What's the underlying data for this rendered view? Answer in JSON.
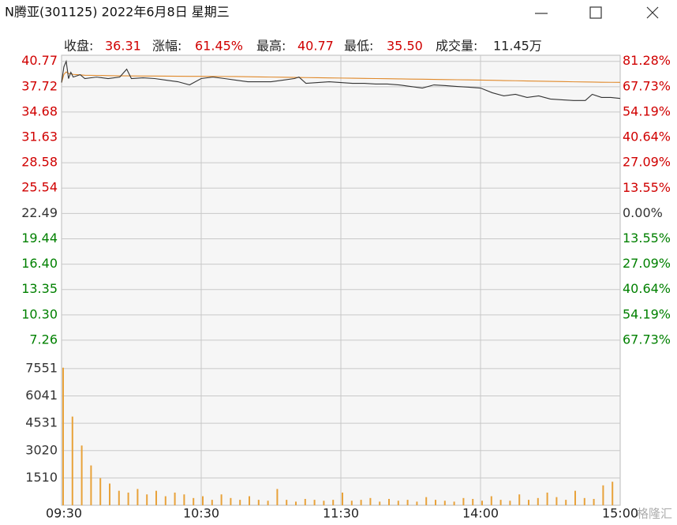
{
  "window": {
    "title": "N腾亚(301125)  2022年6月8日  星期三"
  },
  "stats": [
    {
      "label": "收盘:",
      "value": "36.31",
      "color": "#d00000"
    },
    {
      "label": "涨幅:",
      "value": "61.45%",
      "color": "#d00000"
    },
    {
      "label": "最高:",
      "value": "40.77",
      "color": "#d00000"
    },
    {
      "label": "最低:",
      "value": "35.50",
      "color": "#d00000"
    },
    {
      "label": "成交量:",
      "value": "11.45万",
      "color": "#222222"
    }
  ],
  "watermark": "格隆汇",
  "chart_data": [
    {
      "type": "line",
      "colors": {
        "up": "#d00000",
        "down": "#008000",
        "flat": "#333333"
      },
      "grid": true,
      "xlim": [
        0,
        240
      ],
      "xticks": [
        {
          "value": 0,
          "label": "09:30"
        },
        {
          "value": 60,
          "label": "10:30"
        },
        {
          "value": 120,
          "label": "11:30"
        },
        {
          "value": 180,
          "label": "14:00"
        },
        {
          "value": 240,
          "label": "15:00"
        }
      ],
      "ylim": [
        4.5,
        41.5
      ],
      "yticks": [
        40.77,
        37.72,
        34.68,
        31.63,
        28.58,
        25.54,
        22.49,
        19.44,
        {
          "value": 16.4,
          "label": "16.40"
        },
        13.35,
        {
          "value": 10.3,
          "label": "10.30"
        },
        7.26
      ],
      "y2lim": [
        -79.99,
        84.53
      ],
      "y2ticks": [
        {
          "value": 81.28,
          "label": "81.28%"
        },
        {
          "value": 67.73,
          "label": "67.73%"
        },
        {
          "value": 54.19,
          "label": "54.19%"
        },
        {
          "value": 40.64,
          "label": "40.64%"
        },
        {
          "value": 27.09,
          "label": "27.09%"
        },
        {
          "value": 13.55,
          "label": "13.55%"
        },
        {
          "value": 0,
          "label": "0.00%"
        },
        {
          "value": -13.55,
          "label": "13.55%"
        },
        {
          "value": -27.09,
          "label": "27.09%"
        },
        {
          "value": -40.64,
          "label": "40.64%"
        },
        {
          "value": -54.19,
          "label": "54.19%"
        },
        {
          "value": -67.73,
          "label": "67.73%"
        }
      ],
      "x": [
        0,
        1,
        2,
        3,
        4,
        5,
        8,
        10,
        15,
        20,
        25,
        28,
        30,
        35,
        40,
        45,
        50,
        55,
        60,
        65,
        70,
        75,
        80,
        85,
        90,
        95,
        100,
        102,
        105,
        110,
        115,
        120,
        125,
        130,
        135,
        140,
        145,
        150,
        155,
        160,
        165,
        170,
        175,
        180,
        185,
        190,
        195,
        200,
        205,
        210,
        215,
        220,
        225,
        228,
        232,
        236,
        240
      ],
      "series": [
        {
          "color": "#333333",
          "values": [
            38.22,
            40.11,
            40.77,
            38.7,
            39.45,
            38.88,
            39.17,
            38.7,
            38.88,
            38.7,
            38.88,
            39.83,
            38.7,
            38.79,
            38.7,
            38.51,
            38.32,
            37.94,
            38.7,
            38.88,
            38.7,
            38.51,
            38.32,
            38.32,
            38.32,
            38.51,
            38.7,
            38.88,
            38.13,
            38.22,
            38.32,
            38.22,
            38.13,
            38.13,
            38.04,
            38.04,
            37.94,
            37.75,
            37.56,
            37.94,
            37.85,
            37.75,
            37.66,
            37.56,
            37.0,
            36.62,
            36.81,
            36.43,
            36.62,
            36.24,
            36.15,
            36.06,
            36.06,
            36.81,
            36.43,
            36.43,
            36.31
          ]
        },
        {
          "color": "#e0892a",
          "values": [
            38.22,
            39.2,
            39.5,
            39.3,
            39.3,
            39.2,
            39.15,
            39.1,
            39.08,
            39.05,
            39.03,
            39.03,
            39.02,
            39.0,
            39.0,
            38.99,
            38.98,
            38.97,
            38.97,
            38.96,
            38.95,
            38.94,
            38.92,
            38.9,
            38.88,
            38.86,
            38.84,
            38.83,
            38.82,
            38.8,
            38.78,
            38.76,
            38.74,
            38.72,
            38.7,
            38.68,
            38.66,
            38.64,
            38.62,
            38.6,
            38.58,
            38.56,
            38.54,
            38.52,
            38.49,
            38.46,
            38.44,
            38.41,
            38.39,
            38.36,
            38.34,
            38.31,
            38.29,
            38.28,
            38.26,
            38.25,
            38.24
          ]
        }
      ]
    },
    {
      "type": "bar",
      "color": "#e8a23a",
      "grid": true,
      "xlim": [
        0,
        240
      ],
      "ylim": [
        0,
        7850
      ],
      "yticks": [
        7551,
        6041,
        4531,
        3020,
        1510
      ],
      "x": [
        0,
        4,
        8,
        12,
        16,
        20,
        24,
        28,
        32,
        36,
        40,
        44,
        48,
        52,
        56,
        60,
        64,
        68,
        72,
        76,
        80,
        84,
        88,
        92,
        96,
        100,
        104,
        108,
        112,
        116,
        120,
        124,
        128,
        132,
        136,
        140,
        144,
        148,
        152,
        156,
        160,
        164,
        168,
        172,
        176,
        180,
        184,
        188,
        192,
        196,
        200,
        204,
        208,
        212,
        216,
        220,
        224,
        228,
        232,
        236
      ],
      "values": [
        7600,
        4900,
        3300,
        2200,
        1500,
        1200,
        800,
        700,
        900,
        600,
        800,
        500,
        700,
        600,
        400,
        500,
        300,
        600,
        400,
        300,
        500,
        300,
        250,
        900,
        300,
        200,
        350,
        300,
        250,
        300,
        700,
        250,
        300,
        400,
        200,
        350,
        250,
        300,
        200,
        450,
        300,
        250,
        200,
        400,
        350,
        250,
        500,
        300,
        250,
        600,
        300,
        400,
        700,
        450,
        300,
        800,
        400,
        350,
        1100,
        1300
      ]
    }
  ]
}
